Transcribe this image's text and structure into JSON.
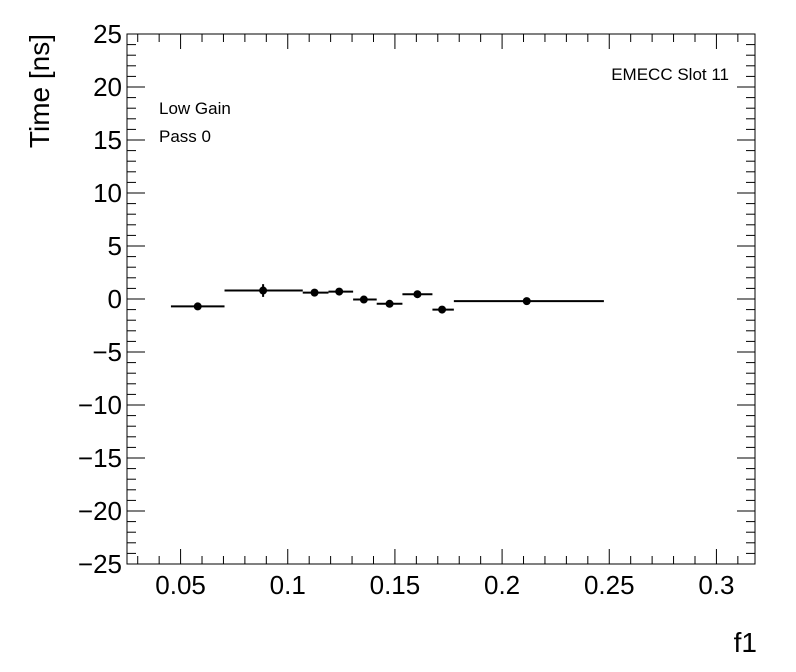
{
  "chart_data": {
    "type": "scatter",
    "title": "",
    "xlabel": "f1",
    "ylabel": "Time [ns]",
    "xlim": [
      0.025,
      0.318
    ],
    "ylim": [
      -25,
      25
    ],
    "grid": false,
    "x_ticks": [
      0.05,
      0.1,
      0.15,
      0.2,
      0.25,
      0.3
    ],
    "x_tick_labels": [
      "0.05",
      "0.1",
      "0.15",
      "0.2",
      "0.25",
      "0.3"
    ],
    "y_ticks": [
      -25,
      -20,
      -15,
      -10,
      -5,
      0,
      5,
      10,
      15,
      20,
      25
    ],
    "y_tick_labels": [
      "−25",
      "−20",
      "−15",
      "−10",
      "−5",
      "0",
      "5",
      "10",
      "15",
      "20",
      "25"
    ],
    "annotations": {
      "top_right": "EMECC Slot 11",
      "line1": "Low Gain",
      "line2": "Pass 0"
    },
    "series": [
      {
        "points": [
          {
            "x": 0.058,
            "y": -0.7,
            "xmin": 0.0455,
            "xmax": 0.0705,
            "yerr": 0.3
          },
          {
            "x": 0.0885,
            "y": 0.8,
            "xmin": 0.0705,
            "xmax": 0.107,
            "yerr": 0.6
          },
          {
            "x": 0.1125,
            "y": 0.6,
            "xmin": 0.107,
            "xmax": 0.119,
            "yerr": 0.3
          },
          {
            "x": 0.124,
            "y": 0.7,
            "xmin": 0.119,
            "xmax": 0.1305,
            "yerr": 0.3
          },
          {
            "x": 0.1355,
            "y": -0.05,
            "xmin": 0.1305,
            "xmax": 0.1415,
            "yerr": 0.3
          },
          {
            "x": 0.1475,
            "y": -0.45,
            "xmin": 0.1415,
            "xmax": 0.1535,
            "yerr": 0.3
          },
          {
            "x": 0.1605,
            "y": 0.45,
            "xmin": 0.1535,
            "xmax": 0.1675,
            "yerr": 0.3
          },
          {
            "x": 0.172,
            "y": -1.0,
            "xmin": 0.1675,
            "xmax": 0.1775,
            "yerr": 0.3
          },
          {
            "x": 0.2115,
            "y": -0.2,
            "xmin": 0.1775,
            "xmax": 0.2475,
            "yerr": 0.3
          }
        ]
      }
    ]
  }
}
